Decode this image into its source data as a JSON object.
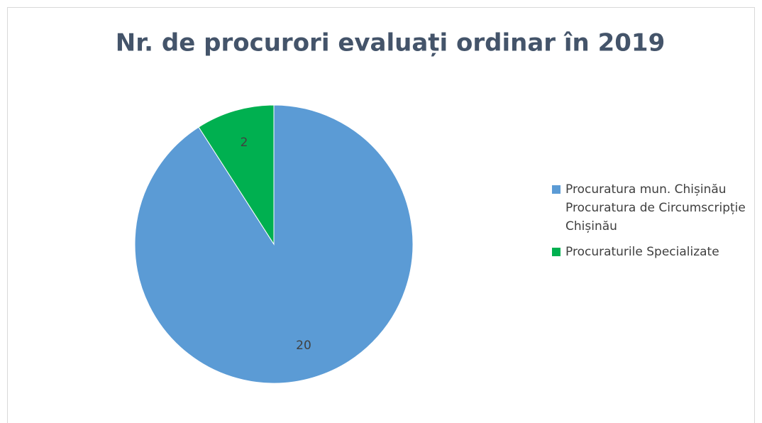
{
  "chart_data": {
    "type": "pie",
    "title": "Nr. de procurori evaluați ordinar în 2019",
    "categories": [
      "Procuratura mun. Chișinău Procuratura de Circumscripție Chișinău",
      "Procuraturile Specializate"
    ],
    "values": [
      20,
      2
    ],
    "colors": [
      "#5b9bd5",
      "#00b050"
    ],
    "legend": "right"
  }
}
